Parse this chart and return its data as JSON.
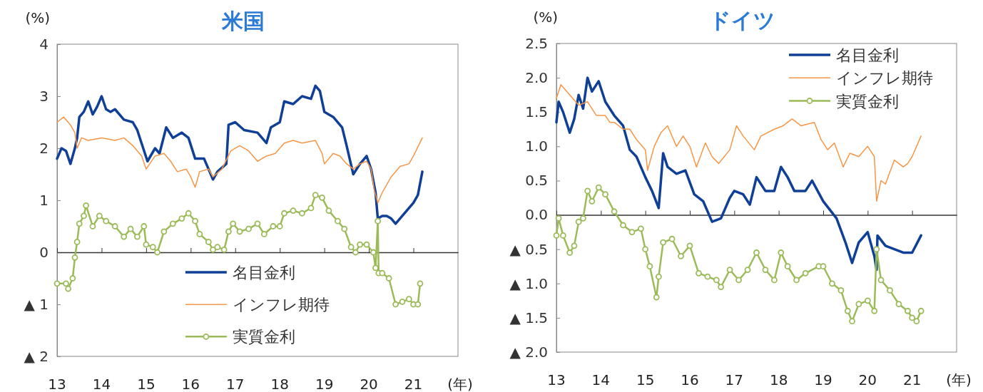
{
  "chart_data": [
    {
      "type": "line",
      "title": "米国",
      "ylabel": "(%)",
      "xlabel": "(年)",
      "xlim": [
        13,
        22
      ],
      "xticks": [
        13,
        14,
        15,
        16,
        17,
        18,
        19,
        20,
        21
      ],
      "ylim": [
        -2,
        4
      ],
      "yticks": [
        {
          "value": -2,
          "label": "▲ 2"
        },
        {
          "value": -1,
          "label": "▲ 1"
        },
        0,
        1,
        2,
        3,
        4
      ],
      "legend": "bottom",
      "series": [
        {
          "name": "名目金利",
          "color": "#0f3f96",
          "x": [
            13.0,
            13.1,
            13.2,
            13.3,
            13.4,
            13.45,
            13.5,
            13.6,
            13.7,
            13.8,
            13.9,
            14.0,
            14.1,
            14.2,
            14.3,
            14.5,
            14.7,
            14.8,
            15.03,
            15.2,
            15.3,
            15.45,
            15.6,
            15.8,
            15.95,
            16.1,
            16.3,
            16.5,
            16.6,
            16.8,
            16.85,
            17.0,
            17.2,
            17.5,
            17.7,
            17.8,
            18.0,
            18.1,
            18.3,
            18.5,
            18.7,
            18.8,
            18.9,
            19.0,
            19.2,
            19.4,
            19.5,
            19.65,
            19.8,
            19.95,
            20.05,
            20.15,
            20.2,
            20.3,
            20.4,
            20.5,
            20.6,
            20.75,
            20.9,
            21.0,
            21.1,
            21.2
          ],
          "values": [
            1.8,
            2.0,
            1.95,
            1.7,
            2.0,
            2.2,
            2.6,
            2.7,
            2.9,
            2.65,
            2.8,
            3.0,
            2.75,
            2.7,
            2.75,
            2.55,
            2.5,
            2.35,
            1.75,
            2.0,
            1.9,
            2.4,
            2.2,
            2.3,
            2.2,
            1.8,
            1.8,
            1.4,
            1.55,
            1.7,
            2.45,
            2.5,
            2.35,
            2.3,
            2.1,
            2.4,
            2.5,
            2.9,
            2.85,
            3.0,
            2.95,
            3.2,
            3.1,
            2.7,
            2.6,
            2.4,
            2.05,
            1.5,
            1.7,
            1.85,
            1.6,
            1.15,
            0.65,
            0.7,
            0.7,
            0.65,
            0.55,
            0.7,
            0.85,
            0.95,
            1.1,
            1.55
          ]
        },
        {
          "name": "インフレ期待",
          "color": "#f79646",
          "x": [
            13.0,
            13.15,
            13.3,
            13.4,
            13.45,
            13.55,
            13.7,
            14.0,
            14.3,
            14.5,
            14.7,
            14.9,
            15.0,
            15.2,
            15.4,
            15.55,
            15.7,
            15.9,
            16.0,
            16.1,
            16.2,
            16.4,
            16.5,
            16.7,
            16.9,
            17.1,
            17.3,
            17.5,
            17.7,
            17.9,
            18.1,
            18.3,
            18.5,
            18.8,
            18.95,
            19.0,
            19.2,
            19.35,
            19.5,
            19.65,
            19.8,
            19.95,
            20.05,
            20.12,
            20.2,
            20.3,
            20.5,
            20.7,
            20.9,
            21.0,
            21.2
          ],
          "values": [
            2.5,
            2.6,
            2.45,
            2.3,
            2.0,
            2.2,
            2.15,
            2.2,
            2.15,
            2.2,
            2.05,
            1.85,
            1.6,
            1.85,
            1.9,
            1.75,
            1.55,
            1.6,
            1.45,
            1.25,
            1.55,
            1.6,
            1.45,
            1.6,
            1.95,
            2.05,
            1.95,
            1.75,
            1.85,
            1.9,
            2.1,
            2.15,
            2.1,
            2.15,
            1.9,
            1.7,
            1.9,
            1.85,
            1.7,
            1.6,
            1.7,
            1.75,
            1.6,
            1.2,
            0.95,
            1.15,
            1.45,
            1.65,
            1.7,
            1.85,
            2.2
          ]
        },
        {
          "name": "実質金利",
          "color": "#9bbb59",
          "marker": "circle",
          "x": [
            13.0,
            13.2,
            13.25,
            13.35,
            13.4,
            13.45,
            13.5,
            13.6,
            13.65,
            13.8,
            13.95,
            14.1,
            14.3,
            14.5,
            14.65,
            14.8,
            14.95,
            15.0,
            15.15,
            15.25,
            15.4,
            15.6,
            15.8,
            15.95,
            16.1,
            16.2,
            16.4,
            16.5,
            16.6,
            16.75,
            16.85,
            16.95,
            17.1,
            17.3,
            17.5,
            17.65,
            17.85,
            18.0,
            18.1,
            18.3,
            18.5,
            18.7,
            18.8,
            18.95,
            19.1,
            19.3,
            19.45,
            19.6,
            19.7,
            19.8,
            19.95,
            20.1,
            20.15,
            20.2,
            20.22,
            20.3,
            20.45,
            20.6,
            20.75,
            20.9,
            21.0,
            21.1,
            21.15
          ],
          "values": [
            -0.6,
            -0.6,
            -0.7,
            -0.5,
            -0.1,
            0.2,
            0.55,
            0.7,
            0.9,
            0.5,
            0.7,
            0.6,
            0.5,
            0.3,
            0.45,
            0.3,
            0.5,
            0.15,
            0.1,
            0.0,
            0.4,
            0.55,
            0.65,
            0.75,
            0.6,
            0.35,
            0.2,
            0.05,
            0.1,
            0.05,
            0.4,
            0.55,
            0.4,
            0.45,
            0.55,
            0.35,
            0.5,
            0.5,
            0.75,
            0.8,
            0.75,
            0.85,
            1.1,
            1.05,
            0.8,
            0.6,
            0.45,
            0.1,
            0.0,
            0.15,
            0.15,
            0.0,
            -0.3,
            0.6,
            -0.4,
            -0.4,
            -0.5,
            -1.0,
            -0.95,
            -0.9,
            -1.0,
            -1.0,
            -0.6
          ]
        }
      ]
    },
    {
      "type": "line",
      "title": "ドイツ",
      "ylabel": "(%)",
      "xlabel": "(年)",
      "xlim": [
        13,
        22
      ],
      "xticks": [
        13,
        14,
        15,
        16,
        17,
        18,
        19,
        20,
        21
      ],
      "ylim": [
        -2,
        2.5
      ],
      "yticks": [
        {
          "value": -2,
          "label": "▲ 2.0"
        },
        {
          "value": -1.5,
          "label": "▲ 1.5"
        },
        {
          "value": -1,
          "label": "▲ 1.0"
        },
        {
          "value": -0.5,
          "label": "▲ 0.5"
        },
        {
          "value": 0,
          "label": "0.0"
        },
        {
          "value": 0.5,
          "label": "0.5"
        },
        {
          "value": 1,
          "label": "1.0"
        },
        {
          "value": 1.5,
          "label": "1.5"
        },
        {
          "value": 2,
          "label": "2.0"
        },
        {
          "value": 2.5,
          "label": "2.5"
        }
      ],
      "legend": "top right",
      "series": [
        {
          "name": "名目金利",
          "color": "#0f3f96",
          "x": [
            13.0,
            13.05,
            13.15,
            13.3,
            13.4,
            13.5,
            13.6,
            13.7,
            13.8,
            13.95,
            14.1,
            14.3,
            14.5,
            14.65,
            14.8,
            15.0,
            15.15,
            15.3,
            15.4,
            15.5,
            15.7,
            15.9,
            16.1,
            16.3,
            16.5,
            16.7,
            16.9,
            17.0,
            17.2,
            17.35,
            17.5,
            17.7,
            17.9,
            18.05,
            18.2,
            18.35,
            18.6,
            18.75,
            19.0,
            19.3,
            19.5,
            19.65,
            19.8,
            20.0,
            20.15,
            20.2,
            20.22,
            20.4,
            20.6,
            20.8,
            21.0,
            21.2
          ],
          "values": [
            1.35,
            1.65,
            1.5,
            1.2,
            1.4,
            1.75,
            1.55,
            2.0,
            1.8,
            1.95,
            1.65,
            1.45,
            1.3,
            0.95,
            0.85,
            0.55,
            0.35,
            0.1,
            0.9,
            0.7,
            0.6,
            0.65,
            0.3,
            0.2,
            -0.1,
            -0.05,
            0.25,
            0.35,
            0.3,
            0.15,
            0.55,
            0.35,
            0.35,
            0.7,
            0.55,
            0.35,
            0.35,
            0.5,
            0.2,
            -0.05,
            -0.4,
            -0.7,
            -0.4,
            -0.25,
            -0.6,
            -0.8,
            -0.3,
            -0.45,
            -0.5,
            -0.55,
            -0.55,
            -0.3
          ]
        },
        {
          "name": "インフレ期待",
          "color": "#f79646",
          "x": [
            13.0,
            13.1,
            13.3,
            13.5,
            13.7,
            13.9,
            14.1,
            14.2,
            14.3,
            14.5,
            14.65,
            14.8,
            15.0,
            15.05,
            15.2,
            15.35,
            15.5,
            15.7,
            15.85,
            16.0,
            16.15,
            16.35,
            16.5,
            16.65,
            16.9,
            17.05,
            17.2,
            17.45,
            17.6,
            17.9,
            18.1,
            18.3,
            18.5,
            18.8,
            18.95,
            19.1,
            19.25,
            19.45,
            19.6,
            19.8,
            20.0,
            20.15,
            20.2,
            20.3,
            20.4,
            20.6,
            20.8,
            20.9,
            21.0,
            21.2
          ],
          "values": [
            1.7,
            1.9,
            1.75,
            1.6,
            1.65,
            1.45,
            1.45,
            1.35,
            1.35,
            1.25,
            1.25,
            1.1,
            0.95,
            0.65,
            1.0,
            1.2,
            1.3,
            1.0,
            1.15,
            1.0,
            0.7,
            1.05,
            0.85,
            0.75,
            0.95,
            1.3,
            1.15,
            0.95,
            1.15,
            1.25,
            1.3,
            1.4,
            1.3,
            1.35,
            1.1,
            0.95,
            1.05,
            0.7,
            0.9,
            0.85,
            1.0,
            0.85,
            0.2,
            0.5,
            0.45,
            0.8,
            0.7,
            0.75,
            0.85,
            1.15
          ]
        },
        {
          "name": "実質金利",
          "color": "#9bbb59",
          "marker": "circle",
          "x": [
            13.0,
            13.05,
            13.15,
            13.3,
            13.4,
            13.5,
            13.6,
            13.7,
            13.8,
            13.95,
            14.1,
            14.3,
            14.5,
            14.7,
            14.9,
            15.0,
            15.1,
            15.25,
            15.3,
            15.4,
            15.6,
            15.8,
            16.0,
            16.2,
            16.4,
            16.6,
            16.7,
            16.9,
            17.1,
            17.3,
            17.5,
            17.7,
            17.9,
            18.05,
            18.2,
            18.4,
            18.6,
            18.9,
            19.0,
            19.2,
            19.4,
            19.55,
            19.65,
            19.8,
            20.0,
            20.15,
            20.2,
            20.3,
            20.5,
            20.7,
            20.9,
            21.0,
            21.1,
            21.2
          ],
          "values": [
            -0.3,
            -0.05,
            -0.3,
            -0.55,
            -0.45,
            -0.1,
            -0.05,
            0.35,
            0.2,
            0.4,
            0.3,
            0.05,
            -0.15,
            -0.25,
            -0.2,
            -0.5,
            -0.75,
            -1.2,
            -0.9,
            -0.4,
            -0.35,
            -0.6,
            -0.45,
            -0.85,
            -0.9,
            -0.95,
            -1.05,
            -0.8,
            -0.95,
            -0.8,
            -0.55,
            -0.8,
            -0.95,
            -0.55,
            -0.75,
            -0.95,
            -0.85,
            -0.75,
            -0.75,
            -1.0,
            -1.1,
            -1.4,
            -1.55,
            -1.3,
            -1.25,
            -1.4,
            -0.5,
            -0.95,
            -1.1,
            -1.3,
            -1.4,
            -1.5,
            -1.55,
            -1.4
          ]
        }
      ]
    }
  ]
}
